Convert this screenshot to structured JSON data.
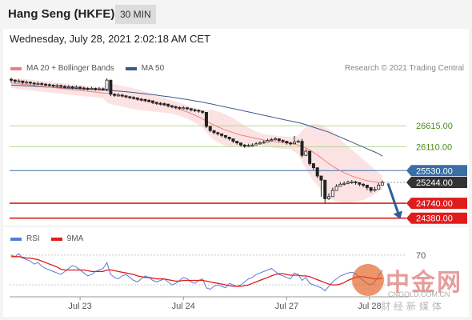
{
  "header": {
    "title": "Hang Seng (HKFE)",
    "timeframe": "30 MIN",
    "timestamp": "Wednesday, July 28, 2021 2:02:18 AM CET",
    "credit": "Research © 2021 Trading Central"
  },
  "colors": {
    "bollinger": "#f08080",
    "ma20": "#f08080",
    "ma50": "#3a5a8c",
    "candle": "#222222",
    "resistance": "#b5d98f",
    "pivot": "#3a6ea5",
    "support": "#e01b1b",
    "current": "#333333",
    "rsi": "#5b7bd5",
    "rsi_ma": "#e01b1b",
    "arrow": "#2d5b9c"
  },
  "chart_data": [
    {
      "type": "line",
      "series": [
        {
          "name": "MA 20 + Bollinger Bands"
        },
        {
          "name": "MA 50"
        }
      ],
      "x_ticks": [
        "Jul 23",
        "Jul 24",
        "Jul 27",
        "Jul 28"
      ],
      "ylim": [
        24200,
        27800
      ],
      "price_levels": [
        {
          "value": 26615.0,
          "label": "26615.00",
          "kind": "resistance"
        },
        {
          "value": 26110.0,
          "label": "26110.00",
          "kind": "resistance"
        },
        {
          "value": 25530.0,
          "label": "25530.00",
          "kind": "pivot"
        },
        {
          "value": 25244.0,
          "label": "25244.00",
          "kind": "current"
        },
        {
          "value": 24740.0,
          "label": "24740.00",
          "kind": "support"
        },
        {
          "value": 24380.0,
          "label": "24380.00",
          "kind": "support"
        }
      ],
      "close": [
        27720,
        27690,
        27700,
        27660,
        27670,
        27650,
        27630,
        27640,
        27620,
        27610,
        27600,
        27580,
        27590,
        27570,
        27560,
        27560,
        27540,
        27550,
        27530,
        27520,
        27510,
        27520,
        27500,
        27510,
        27500,
        27720,
        27380,
        27350,
        27360,
        27340,
        27320,
        27300,
        27290,
        27260,
        27250,
        27230,
        27220,
        27180,
        27160,
        27150,
        27140,
        27100,
        27080,
        27060,
        27040,
        27050,
        27030,
        27000,
        26990,
        26970,
        26940,
        26600,
        26500,
        26450,
        26420,
        26380,
        26340,
        26300,
        26240,
        26200,
        26150,
        26120,
        26140,
        26150,
        26180,
        26200,
        26220,
        26260,
        26280,
        26300,
        26260,
        26240,
        26200,
        26180,
        26220,
        26240,
        25900,
        26000,
        25700,
        25600,
        25400,
        25300,
        24850,
        24900,
        25050,
        25150,
        25200,
        25220,
        25250,
        25260,
        25240,
        25200,
        25180,
        25120,
        25050,
        25080,
        25180,
        25244
      ],
      "high": [
        27780,
        27740,
        27740,
        27700,
        27710,
        27690,
        27670,
        27680,
        27660,
        27650,
        27640,
        27620,
        27630,
        27610,
        27600,
        27600,
        27580,
        27590,
        27570,
        27560,
        27550,
        27560,
        27540,
        27550,
        27540,
        27760,
        27460,
        27400,
        27400,
        27380,
        27360,
        27340,
        27330,
        27300,
        27290,
        27270,
        27260,
        27220,
        27200,
        27190,
        27180,
        27140,
        27120,
        27100,
        27080,
        27090,
        27070,
        27040,
        27030,
        27010,
        26980,
        26900,
        26580,
        26500,
        26470,
        26430,
        26390,
        26350,
        26290,
        26250,
        26200,
        26170,
        26180,
        26190,
        26220,
        26240,
        26260,
        26300,
        26320,
        26340,
        26310,
        26290,
        26250,
        26230,
        26370,
        26280,
        26300,
        26050,
        25950,
        25700,
        25500,
        25400,
        24950,
        24980,
        25120,
        25200,
        25250,
        25270,
        25290,
        25300,
        25280,
        25250,
        25230,
        25170,
        25100,
        25140,
        25230,
        25290
      ],
      "low": [
        27660,
        27640,
        27660,
        27620,
        27630,
        27610,
        27590,
        27600,
        27580,
        27570,
        27560,
        27540,
        27550,
        27530,
        27520,
        27520,
        27500,
        27510,
        27490,
        27480,
        27470,
        27480,
        27460,
        27470,
        27460,
        27450,
        27330,
        27310,
        27320,
        27300,
        27280,
        27260,
        27250,
        27220,
        27210,
        27190,
        27180,
        27140,
        27120,
        27110,
        27100,
        27060,
        27040,
        27020,
        27000,
        27010,
        26990,
        26960,
        26950,
        26930,
        26900,
        26560,
        26460,
        26410,
        26380,
        26340,
        26300,
        26260,
        26200,
        26160,
        26110,
        26080,
        26100,
        26110,
        26140,
        26160,
        26180,
        26220,
        26240,
        26260,
        26220,
        26200,
        26160,
        26140,
        26180,
        26200,
        25850,
        25880,
        25650,
        25550,
        25350,
        24900,
        24750,
        24820,
        24980,
        25100,
        25150,
        25170,
        25200,
        25210,
        25190,
        25150,
        25130,
        25060,
        25000,
        25020,
        25130,
        25200
      ],
      "ma20": [
        27650,
        27640,
        27630,
        27620,
        27610,
        27600,
        27590,
        27580,
        27570,
        27560,
        27550,
        27540,
        27530,
        27520,
        27510,
        27500,
        27490,
        27480,
        27470,
        27460,
        27450,
        27440,
        27430,
        27420,
        27410,
        27400,
        27390,
        27370,
        27350,
        27330,
        27310,
        27290,
        27270,
        27250,
        27230,
        27210,
        27190,
        27170,
        27150,
        27130,
        27110,
        27090,
        27070,
        27040,
        27010,
        26980,
        26950,
        26910,
        26870,
        26830,
        26780,
        26730,
        26680,
        26630,
        26590,
        26550,
        26510,
        26480,
        26450,
        26420,
        26390,
        26370,
        26350,
        26330,
        26310,
        26290,
        26270,
        26250,
        26240,
        26230,
        26220,
        26210,
        26200,
        26190,
        26170,
        26150,
        26120,
        26080,
        26030,
        25970,
        25910,
        25840,
        25770,
        25700,
        25640,
        25580,
        25530,
        25480,
        25440,
        25400,
        25370,
        25340,
        25310,
        25290,
        25270,
        25260,
        25250,
        25245
      ],
      "bb_upper": [
        27770,
        27760,
        27760,
        27750,
        27740,
        27730,
        27720,
        27710,
        27700,
        27690,
        27680,
        27670,
        27660,
        27650,
        27640,
        27630,
        27620,
        27610,
        27600,
        27590,
        27580,
        27570,
        27560,
        27550,
        27540,
        27620,
        27640,
        27620,
        27600,
        27580,
        27560,
        27540,
        27520,
        27500,
        27470,
        27440,
        27410,
        27380,
        27350,
        27320,
        27290,
        27260,
        27230,
        27200,
        27170,
        27140,
        27110,
        27080,
        27050,
        27020,
        26990,
        27000,
        27010,
        26990,
        26960,
        26930,
        26890,
        26850,
        26800,
        26740,
        26680,
        26620,
        26570,
        26520,
        26480,
        26440,
        26410,
        26400,
        26390,
        26380,
        26370,
        26360,
        26350,
        26340,
        26360,
        26380,
        26500,
        26580,
        26640,
        26660,
        26650,
        26620,
        26580,
        26530,
        26460,
        26380,
        26290,
        26200,
        26120,
        26040,
        25960,
        25880,
        25800,
        25720,
        25640,
        25560,
        25480,
        25420
      ],
      "bb_lower": [
        27530,
        27520,
        27500,
        27490,
        27480,
        27470,
        27460,
        27450,
        27440,
        27430,
        27420,
        27410,
        27400,
        27390,
        27380,
        27370,
        27360,
        27350,
        27340,
        27330,
        27320,
        27310,
        27300,
        27290,
        27280,
        27180,
        27140,
        27120,
        27100,
        27080,
        27060,
        27040,
        27020,
        27000,
        26990,
        26980,
        26970,
        26960,
        26950,
        26940,
        26930,
        26920,
        26910,
        26880,
        26850,
        26820,
        26790,
        26740,
        26690,
        26640,
        26570,
        26460,
        26350,
        26270,
        26220,
        26170,
        26130,
        26110,
        26100,
        26100,
        26100,
        26120,
        26130,
        26140,
        26140,
        26140,
        26130,
        26100,
        26090,
        26080,
        26070,
        26060,
        26050,
        26040,
        25980,
        25920,
        25740,
        25580,
        25420,
        25280,
        25170,
        25060,
        24960,
        24870,
        24820,
        24780,
        24770,
        24760,
        24760,
        24760,
        24780,
        24800,
        24820,
        24860,
        24900,
        24960,
        25020,
        25070
      ],
      "ma50": [
        27600,
        27595,
        27590,
        27585,
        27580,
        27575,
        27570,
        27565,
        27560,
        27555,
        27550,
        27545,
        27540,
        27535,
        27530,
        27525,
        27520,
        27515,
        27510,
        27505,
        27500,
        27495,
        27490,
        27485,
        27480,
        27475,
        27470,
        27462,
        27454,
        27446,
        27438,
        27430,
        27420,
        27410,
        27400,
        27390,
        27380,
        27368,
        27356,
        27344,
        27332,
        27320,
        27306,
        27292,
        27278,
        27264,
        27250,
        27234,
        27218,
        27202,
        27186,
        27168,
        27150,
        27130,
        27110,
        27090,
        27070,
        27050,
        27030,
        27010,
        26990,
        26970,
        26950,
        26930,
        26910,
        26890,
        26870,
        26850,
        26830,
        26810,
        26790,
        26770,
        26750,
        26730,
        26710,
        26690,
        26670,
        26640,
        26610,
        26580,
        26550,
        26520,
        26490,
        26460,
        26420,
        26380,
        26340,
        26300,
        26260,
        26220,
        26180,
        26140,
        26100,
        26060,
        26020,
        25980,
        25940,
        25880
      ]
    },
    {
      "type": "line",
      "series": [
        {
          "name": "RSI"
        },
        {
          "name": "9MA"
        }
      ],
      "ylim": [
        15,
        85
      ],
      "y_ticks": [
        70
      ],
      "rsi": [
        70,
        68,
        72,
        66,
        64,
        62,
        58,
        60,
        55,
        52,
        50,
        48,
        46,
        44,
        48,
        52,
        56,
        54,
        50,
        46,
        42,
        44,
        48,
        50,
        52,
        60,
        44,
        40,
        38,
        42,
        44,
        40,
        36,
        34,
        38,
        42,
        40,
        36,
        34,
        36,
        38,
        34,
        30,
        32,
        36,
        40,
        38,
        34,
        32,
        36,
        38,
        26,
        24,
        28,
        30,
        28,
        26,
        32,
        30,
        28,
        30,
        34,
        38,
        40,
        44,
        46,
        48,
        50,
        52,
        48,
        44,
        42,
        40,
        38,
        46,
        44,
        36,
        40,
        32,
        30,
        28,
        26,
        22,
        28,
        34,
        38,
        42,
        44,
        46,
        47,
        45,
        40,
        36,
        32,
        30,
        34,
        42,
        50
      ],
      "rsi_ma": [
        68,
        68,
        68,
        67,
        66,
        66,
        65,
        64,
        62,
        60,
        58,
        56,
        54,
        51,
        50,
        50,
        50,
        50,
        50,
        50,
        49,
        48,
        48,
        48,
        48,
        50,
        50,
        49,
        48,
        47,
        46,
        45,
        44,
        42,
        41,
        40,
        40,
        39,
        38,
        38,
        38,
        37,
        36,
        35,
        35,
        36,
        36,
        36,
        36,
        36,
        36,
        35,
        34,
        33,
        32,
        31,
        30,
        29,
        28,
        28,
        28,
        29,
        30,
        32,
        34,
        36,
        38,
        40,
        42,
        44,
        45,
        45,
        44,
        43,
        43,
        43,
        42,
        42,
        41,
        39,
        37,
        35,
        33,
        31,
        30,
        30,
        31,
        33,
        36,
        38,
        40,
        41,
        41,
        40,
        39,
        38,
        38,
        39
      ]
    }
  ],
  "watermark": {
    "cn": "中金网",
    "url": "CNGOLD.COM.CN",
    "sub": "财经新媒体"
  }
}
